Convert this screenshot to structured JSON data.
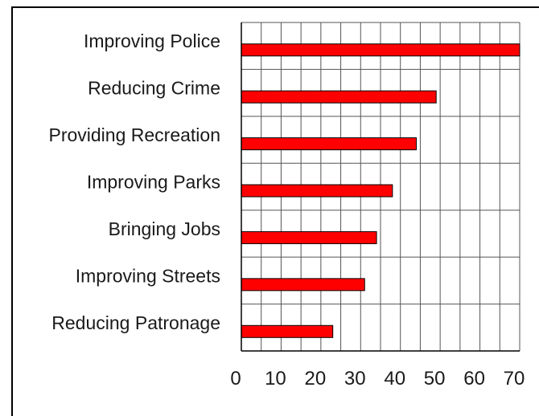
{
  "chart_data": {
    "type": "bar",
    "orientation": "horizontal",
    "title": "",
    "xlabel": "",
    "ylabel": "",
    "categories": [
      "Improving Police",
      "Reducing Crime",
      "Providing Recreation",
      "Improving Parks",
      "Bringing Jobs",
      "Improving Streets",
      "Reducing Patronage"
    ],
    "values": [
      70,
      49,
      44,
      38,
      34,
      31,
      23
    ],
    "xlim": [
      0,
      70
    ],
    "xticks": [
      "0",
      "10",
      "20",
      "30",
      "40",
      "50",
      "60",
      "70"
    ],
    "grid": true,
    "bar_color": "#ff0000",
    "bar_edge_color": "#000000"
  }
}
